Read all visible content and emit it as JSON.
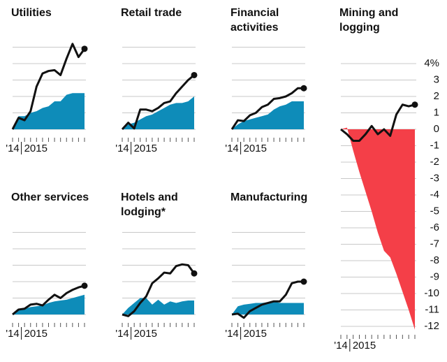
{
  "chart_data": [
    {
      "type": "line",
      "title": "Utilities",
      "categories": [
        "'14",
        "2015",
        null,
        null,
        null,
        null,
        null,
        null,
        null,
        null,
        null,
        null,
        null
      ],
      "ylim": [
        0,
        5
      ],
      "yticks": [
        0,
        1,
        2,
        3,
        4,
        5
      ],
      "tick_labels": false,
      "grid": true,
      "series": [
        {
          "style": "area",
          "color": "#0e8cb9",
          "values": [
            0,
            0.8,
            0.8,
            1.0,
            1.1,
            1.3,
            1.4,
            1.7,
            1.7,
            2.1,
            2.2,
            2.2,
            2.2
          ]
        },
        {
          "style": "line",
          "color": "#111111",
          "values": [
            0,
            0.7,
            0.55,
            1.1,
            2.6,
            3.4,
            3.55,
            3.6,
            3.3,
            4.3,
            5.2,
            4.4,
            4.9
          ]
        }
      ]
    },
    {
      "type": "line",
      "title": "Retail trade",
      "categories": [
        "'14",
        "2015",
        null,
        null,
        null,
        null,
        null,
        null,
        null,
        null,
        null,
        null,
        null
      ],
      "ylim": [
        0,
        5
      ],
      "yticks": [
        0,
        1,
        2,
        3,
        4,
        5
      ],
      "tick_labels": false,
      "grid": true,
      "series": [
        {
          "style": "area",
          "color": "#0e8cb9",
          "values": [
            0,
            0.3,
            0.4,
            0.6,
            0.8,
            0.9,
            1.1,
            1.3,
            1.5,
            1.6,
            1.6,
            1.7,
            2.0
          ]
        },
        {
          "style": "line",
          "color": "#111111",
          "values": [
            0,
            0.4,
            0.05,
            1.2,
            1.2,
            1.1,
            1.3,
            1.6,
            1.7,
            2.2,
            2.6,
            3.0,
            3.3
          ]
        }
      ]
    },
    {
      "type": "line",
      "title": "Financial activities",
      "categories": [
        "'14",
        "2015",
        null,
        null,
        null,
        null,
        null,
        null,
        null,
        null,
        null,
        null,
        null
      ],
      "ylim": [
        0,
        5
      ],
      "yticks": [
        0,
        1,
        2,
        3,
        4,
        5
      ],
      "tick_labels": false,
      "grid": true,
      "series": [
        {
          "style": "area",
          "color": "#0e8cb9",
          "values": [
            0,
            0.3,
            0.5,
            0.6,
            0.7,
            0.8,
            0.9,
            1.2,
            1.4,
            1.5,
            1.7,
            1.7,
            1.7
          ]
        },
        {
          "style": "line",
          "color": "#111111",
          "values": [
            0,
            0.55,
            0.5,
            0.85,
            1.0,
            1.35,
            1.5,
            1.85,
            1.9,
            2.0,
            2.2,
            2.5,
            2.5
          ]
        }
      ]
    },
    {
      "type": "line",
      "title": "Mining and logging",
      "categories": [
        "'14",
        "2015",
        null,
        null,
        null,
        null,
        null,
        null,
        null,
        null,
        null,
        null,
        null
      ],
      "ylim": [
        -12,
        4
      ],
      "yticks": [
        {
          "value": 4,
          "label": "4%"
        },
        3,
        2,
        1,
        0,
        -1,
        -2,
        -3,
        -4,
        -5,
        -6,
        -7,
        -8,
        -9,
        -10,
        -11,
        -12
      ],
      "tick_labels": true,
      "grid": true,
      "series": [
        {
          "style": "area",
          "color": "#f43f48",
          "values": [
            0,
            0.1,
            -1.3,
            -2.6,
            -3.8,
            -5,
            -6.3,
            -7.4,
            -7.8,
            -8.8,
            -9.9,
            -11,
            -12.2
          ]
        },
        {
          "style": "line",
          "color": "#111111",
          "values": [
            0,
            -0.3,
            -0.7,
            -0.7,
            -0.3,
            0.2,
            -0.3,
            0,
            -0.4,
            0.9,
            1.5,
            1.4,
            1.5
          ]
        }
      ]
    },
    {
      "type": "line",
      "title": "Other services",
      "categories": [
        "'14",
        "2015",
        null,
        null,
        null,
        null,
        null,
        null,
        null,
        null,
        null,
        null,
        null
      ],
      "ylim": [
        0,
        5
      ],
      "yticks": [
        0,
        1,
        2,
        3,
        4,
        5
      ],
      "tick_labels": false,
      "grid": true,
      "series": [
        {
          "style": "area",
          "color": "#0e8cb9",
          "values": [
            0,
            0.3,
            0.35,
            0.45,
            0.5,
            0.55,
            0.7,
            0.8,
            0.85,
            0.9,
            1.0,
            1.1,
            1.2
          ]
        },
        {
          "style": "line",
          "color": "#111111",
          "values": [
            0,
            0.3,
            0.35,
            0.6,
            0.65,
            0.55,
            0.9,
            1.2,
            1.0,
            1.3,
            1.5,
            1.65,
            1.75
          ]
        }
      ]
    },
    {
      "type": "line",
      "title": "Hotels and lodging*",
      "categories": [
        "'14",
        "2015",
        null,
        null,
        null,
        null,
        null,
        null,
        null,
        null,
        null,
        null,
        null
      ],
      "ylim": [
        0,
        5
      ],
      "yticks": [
        0,
        1,
        2,
        3,
        4,
        5
      ],
      "tick_labels": false,
      "grid": true,
      "series": [
        {
          "style": "area",
          "color": "#0e8cb9",
          "values": [
            0,
            0.4,
            0.7,
            1.0,
            1.0,
            0.6,
            0.9,
            0.6,
            0.8,
            0.7,
            0.8,
            0.85,
            0.85
          ]
        },
        {
          "style": "line",
          "color": "#111111",
          "values": [
            0,
            -0.1,
            0.2,
            0.7,
            1.1,
            1.9,
            2.2,
            2.55,
            2.5,
            2.95,
            3.05,
            3.0,
            2.5
          ]
        }
      ]
    },
    {
      "type": "line",
      "title": "Manufacturing",
      "categories": [
        "'14",
        "2015",
        null,
        null,
        null,
        null,
        null,
        null,
        null,
        null,
        null,
        null,
        null
      ],
      "ylim": [
        0,
        5
      ],
      "yticks": [
        0,
        1,
        2,
        3,
        4,
        5
      ],
      "tick_labels": false,
      "grid": true,
      "series": [
        {
          "style": "area",
          "color": "#0e8cb9",
          "values": [
            0,
            0.5,
            0.6,
            0.65,
            0.7,
            0.7,
            0.75,
            0.8,
            0.7,
            0.7,
            0.7,
            0.7,
            0.7
          ]
        },
        {
          "style": "line",
          "color": "#111111",
          "values": [
            0,
            0.05,
            -0.2,
            0.2,
            0.4,
            0.6,
            0.7,
            0.8,
            0.8,
            1.2,
            1.9,
            2.0,
            2.0
          ]
        }
      ]
    }
  ]
}
